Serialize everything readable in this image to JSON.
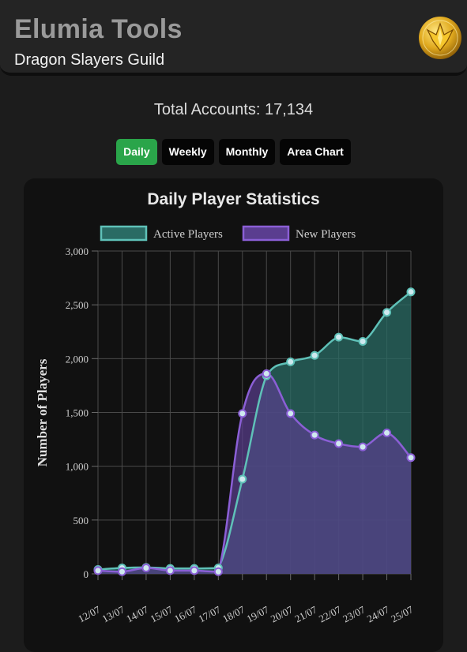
{
  "header": {
    "title": "Elumia Tools",
    "subtitle": "Dragon Slayers Guild",
    "logo_icon": "gold-crest-logo-icon"
  },
  "summary": {
    "total_accounts": "Total Accounts: 17,134"
  },
  "tabs": [
    {
      "label": "Daily",
      "active": true
    },
    {
      "label": "Weekly",
      "active": false
    },
    {
      "label": "Monthly",
      "active": false
    },
    {
      "label": "Area Chart",
      "active": false
    }
  ],
  "colors": {
    "active_tab": "#2aa54a",
    "active_line": "#5fc1b8",
    "active_fill": "#2a6b64",
    "new_line": "#8b5fd6",
    "new_fill": "#5a3d8f"
  },
  "chart_data": {
    "type": "area",
    "title": "Daily Player Statistics",
    "ylabel": "Number of Players",
    "xlabel": "",
    "ylim": [
      0,
      3000
    ],
    "y_ticks": [
      "0",
      "500",
      "1,000",
      "1,500",
      "2,000",
      "2,500",
      "3,000"
    ],
    "y_tick_values": [
      0,
      500,
      1000,
      1500,
      2000,
      2500,
      3000
    ],
    "categories": [
      "12/07",
      "13/07",
      "14/07",
      "15/07",
      "16/07",
      "17/07",
      "18/07",
      "19/07",
      "20/07",
      "21/07",
      "22/07",
      "23/07",
      "24/07",
      "25/07"
    ],
    "legend_position": "top",
    "grid": true,
    "series": [
      {
        "name": "Active Players",
        "values": [
          40,
          55,
          60,
          50,
          50,
          55,
          880,
          1840,
          1970,
          2030,
          2200,
          2160,
          2430,
          2620
        ]
      },
      {
        "name": "New Players",
        "values": [
          30,
          20,
          55,
          30,
          30,
          20,
          1490,
          1860,
          1490,
          1290,
          1210,
          1180,
          1310,
          1080
        ]
      }
    ]
  }
}
